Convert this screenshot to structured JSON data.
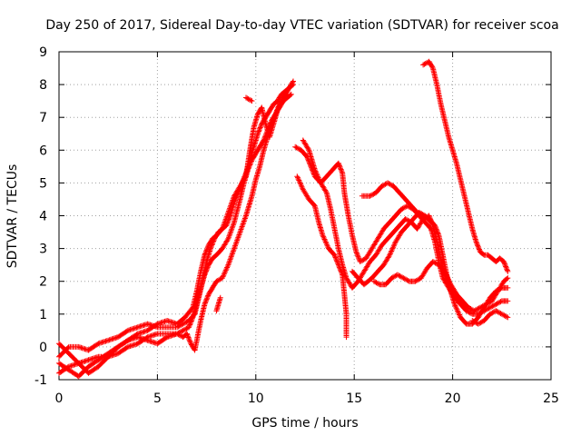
{
  "chart_data": {
    "type": "scatter",
    "title": "Day 250 of 2017, Sidereal Day-to-day VTEC variation (SDTVAR) for receiver scoa",
    "xlabel": "GPS time / hours",
    "ylabel": "SDTVAR / TECUs",
    "xlim": [
      0,
      25
    ],
    "ylim": [
      -1,
      9
    ],
    "xticks": [
      "0",
      "5",
      "10",
      "15",
      "20",
      "25"
    ],
    "yticks": [
      "-1",
      "0",
      "1",
      "2",
      "3",
      "4",
      "5",
      "6",
      "7",
      "8",
      "9"
    ],
    "grid": true,
    "marker": "plus",
    "point_color": "#ff0000",
    "segments": [
      [
        [
          0.0,
          -0.3
        ],
        [
          0.5,
          0.0
        ],
        [
          1.0,
          0.0
        ],
        [
          1.5,
          -0.1
        ],
        [
          2.0,
          0.1
        ],
        [
          2.5,
          0.2
        ],
        [
          3.0,
          0.3
        ],
        [
          3.5,
          0.5
        ],
        [
          4.0,
          0.6
        ],
        [
          4.5,
          0.7
        ],
        [
          5.0,
          0.6
        ],
        [
          5.5,
          0.6
        ],
        [
          6.0,
          0.6
        ],
        [
          6.3,
          0.7
        ],
        [
          6.6,
          0.8
        ],
        [
          6.9,
          1.0
        ],
        [
          7.1,
          1.5
        ],
        [
          7.3,
          2.0
        ],
        [
          7.5,
          2.6
        ],
        [
          7.7,
          3.0
        ],
        [
          7.9,
          3.3
        ],
        [
          8.1,
          3.5
        ],
        [
          8.3,
          3.6
        ],
        [
          8.5,
          3.7
        ],
        [
          8.7,
          4.0
        ],
        [
          8.9,
          4.4
        ],
        [
          9.1,
          4.7
        ],
        [
          9.3,
          5.0
        ],
        [
          9.5,
          5.3
        ],
        [
          9.7,
          5.7
        ],
        [
          9.9,
          6.1
        ],
        [
          10.1,
          6.5
        ],
        [
          10.3,
          6.8
        ],
        [
          10.5,
          7.0
        ],
        [
          10.7,
          7.2
        ],
        [
          10.9,
          7.4
        ],
        [
          11.1,
          7.5
        ],
        [
          11.3,
          7.7
        ],
        [
          11.5,
          7.8
        ],
        [
          11.7,
          7.9
        ],
        [
          11.9,
          8.1
        ]
      ],
      [
        [
          0.0,
          -0.8
        ],
        [
          0.5,
          -0.6
        ],
        [
          1.0,
          -0.5
        ],
        [
          1.5,
          -0.4
        ],
        [
          2.0,
          -0.3
        ],
        [
          2.5,
          -0.3
        ],
        [
          3.0,
          -0.2
        ],
        [
          3.5,
          0.0
        ],
        [
          4.0,
          0.1
        ],
        [
          4.5,
          0.3
        ],
        [
          5.0,
          0.4
        ],
        [
          5.5,
          0.4
        ],
        [
          6.0,
          0.4
        ],
        [
          6.3,
          0.5
        ],
        [
          6.6,
          0.6
        ],
        [
          6.8,
          0.9
        ],
        [
          7.0,
          1.3
        ],
        [
          7.2,
          1.8
        ],
        [
          7.4,
          2.2
        ],
        [
          7.6,
          2.5
        ],
        [
          7.8,
          2.7
        ],
        [
          8.0,
          2.8
        ],
        [
          8.3,
          3.0
        ],
        [
          8.6,
          3.3
        ],
        [
          8.9,
          3.8
        ],
        [
          9.2,
          4.5
        ],
        [
          9.4,
          5.0
        ],
        [
          9.6,
          5.4
        ],
        [
          9.8,
          5.7
        ],
        [
          10.0,
          5.9
        ],
        [
          10.2,
          6.1
        ],
        [
          10.4,
          6.3
        ],
        [
          10.6,
          6.6
        ],
        [
          10.8,
          6.9
        ],
        [
          11.0,
          7.1
        ],
        [
          11.2,
          7.3
        ],
        [
          11.4,
          7.5
        ],
        [
          11.6,
          7.6
        ],
        [
          11.8,
          7.7
        ]
      ],
      [
        [
          0.0,
          0.1
        ],
        [
          0.5,
          -0.2
        ],
        [
          1.0,
          -0.5
        ],
        [
          1.5,
          -0.8
        ],
        [
          2.0,
          -0.6
        ],
        [
          2.5,
          -0.3
        ],
        [
          3.0,
          0.0
        ],
        [
          3.5,
          0.2
        ],
        [
          4.0,
          0.3
        ],
        [
          4.5,
          0.2
        ],
        [
          5.0,
          0.1
        ],
        [
          5.5,
          0.3
        ],
        [
          6.0,
          0.4
        ],
        [
          6.3,
          0.3
        ],
        [
          6.5,
          0.4
        ],
        [
          6.7,
          0.1
        ],
        [
          6.9,
          -0.1
        ],
        [
          7.0,
          0.2
        ],
        [
          7.2,
          0.8
        ],
        [
          7.4,
          1.3
        ],
        [
          7.6,
          1.6
        ],
        [
          7.8,
          1.8
        ],
        [
          8.0,
          2.0
        ],
        [
          8.3,
          2.1
        ],
        [
          8.6,
          2.5
        ],
        [
          8.9,
          3.0
        ],
        [
          9.2,
          3.5
        ],
        [
          9.5,
          4.0
        ],
        [
          9.8,
          4.6
        ],
        [
          10.0,
          5.1
        ],
        [
          10.2,
          5.5
        ],
        [
          10.4,
          6.0
        ],
        [
          10.6,
          6.4
        ],
        [
          10.8,
          6.8
        ],
        [
          11.0,
          7.1
        ],
        [
          11.2,
          7.4
        ],
        [
          11.4,
          7.6
        ],
        [
          11.6,
          7.7
        ]
      ],
      [
        [
          0.0,
          -0.5
        ],
        [
          0.5,
          -0.7
        ],
        [
          1.0,
          -0.9
        ],
        [
          1.5,
          -0.6
        ],
        [
          2.0,
          -0.4
        ],
        [
          2.5,
          -0.2
        ],
        [
          3.0,
          0.0
        ],
        [
          3.5,
          0.2
        ],
        [
          4.0,
          0.4
        ],
        [
          4.5,
          0.5
        ],
        [
          5.0,
          0.7
        ],
        [
          5.5,
          0.8
        ],
        [
          6.0,
          0.7
        ],
        [
          6.4,
          0.9
        ],
        [
          6.8,
          1.2
        ],
        [
          7.0,
          1.7
        ],
        [
          7.2,
          2.3
        ],
        [
          7.4,
          2.8
        ],
        [
          7.6,
          3.1
        ],
        [
          7.8,
          3.3
        ],
        [
          8.0,
          3.4
        ],
        [
          8.3,
          3.6
        ],
        [
          8.6,
          4.1
        ],
        [
          8.9,
          4.6
        ],
        [
          9.2,
          4.9
        ],
        [
          9.5,
          5.2
        ],
        [
          9.7,
          6.0
        ],
        [
          9.9,
          6.7
        ],
        [
          10.1,
          7.1
        ],
        [
          10.3,
          7.3
        ],
        [
          10.5,
          6.8
        ],
        [
          10.7,
          6.4
        ],
        [
          10.9,
          6.8
        ],
        [
          11.1,
          7.2
        ],
        [
          11.3,
          7.5
        ],
        [
          11.5,
          7.7
        ],
        [
          11.7,
          7.9
        ],
        [
          11.9,
          8.0
        ]
      ],
      [
        [
          8.0,
          1.1
        ],
        [
          8.1,
          1.3
        ],
        [
          8.2,
          1.5
        ]
      ],
      [
        [
          9.5,
          7.6
        ],
        [
          9.8,
          7.5
        ]
      ],
      [
        [
          12.0,
          6.1
        ],
        [
          12.3,
          6.0
        ],
        [
          12.6,
          5.8
        ],
        [
          12.8,
          5.5
        ],
        [
          13.0,
          5.2
        ],
        [
          13.3,
          5.0
        ],
        [
          13.6,
          5.2
        ],
        [
          13.9,
          5.4
        ],
        [
          14.2,
          5.6
        ],
        [
          14.4,
          5.3
        ],
        [
          14.5,
          4.7
        ],
        [
          14.7,
          4.0
        ],
        [
          14.9,
          3.4
        ],
        [
          15.1,
          2.9
        ],
        [
          15.3,
          2.6
        ],
        [
          15.6,
          2.7
        ],
        [
          15.9,
          3.0
        ],
        [
          16.2,
          3.3
        ],
        [
          16.5,
          3.6
        ],
        [
          16.8,
          3.8
        ],
        [
          17.1,
          4.0
        ],
        [
          17.4,
          4.2
        ],
        [
          17.7,
          4.3
        ],
        [
          18.0,
          4.2
        ],
        [
          18.3,
          4.0
        ],
        [
          18.6,
          3.8
        ],
        [
          18.9,
          3.6
        ],
        [
          19.1,
          3.2
        ],
        [
          19.3,
          2.6
        ],
        [
          19.5,
          2.1
        ],
        [
          19.8,
          1.8
        ],
        [
          20.1,
          1.5
        ],
        [
          20.4,
          1.3
        ],
        [
          20.7,
          1.1
        ],
        [
          21.0,
          1.0
        ],
        [
          21.3,
          1.0
        ],
        [
          21.6,
          1.1
        ],
        [
          21.9,
          1.2
        ],
        [
          22.2,
          1.3
        ],
        [
          22.5,
          1.4
        ],
        [
          22.8,
          1.4
        ]
      ],
      [
        [
          12.4,
          6.3
        ],
        [
          12.7,
          6.0
        ],
        [
          13.0,
          5.4
        ],
        [
          13.3,
          5.0
        ],
        [
          13.6,
          4.7
        ],
        [
          13.8,
          4.2
        ],
        [
          14.0,
          3.6
        ],
        [
          14.2,
          3.0
        ],
        [
          14.4,
          2.5
        ],
        [
          14.6,
          2.1
        ],
        [
          14.9,
          1.8
        ],
        [
          15.2,
          2.0
        ],
        [
          15.5,
          2.3
        ],
        [
          15.8,
          2.6
        ],
        [
          16.1,
          2.8
        ],
        [
          16.4,
          3.1
        ],
        [
          16.7,
          3.3
        ],
        [
          17.0,
          3.5
        ],
        [
          17.3,
          3.7
        ],
        [
          17.6,
          3.9
        ],
        [
          17.9,
          3.8
        ],
        [
          18.2,
          3.6
        ],
        [
          18.5,
          3.9
        ],
        [
          18.8,
          4.0
        ],
        [
          19.0,
          3.7
        ],
        [
          19.2,
          3.2
        ],
        [
          19.4,
          2.6
        ],
        [
          19.6,
          2.2
        ],
        [
          19.9,
          1.9
        ],
        [
          20.2,
          1.6
        ],
        [
          20.5,
          1.4
        ],
        [
          20.8,
          1.2
        ],
        [
          21.1,
          1.1
        ],
        [
          21.4,
          1.2
        ],
        [
          21.7,
          1.3
        ],
        [
          22.0,
          1.4
        ],
        [
          22.3,
          1.7
        ],
        [
          22.6,
          2.0
        ],
        [
          22.8,
          2.1
        ]
      ],
      [
        [
          12.1,
          5.2
        ],
        [
          12.4,
          4.8
        ],
        [
          12.7,
          4.5
        ],
        [
          13.0,
          4.3
        ],
        [
          13.2,
          3.8
        ],
        [
          13.4,
          3.4
        ],
        [
          13.7,
          3.0
        ],
        [
          14.0,
          2.8
        ],
        [
          14.2,
          2.5
        ],
        [
          14.4,
          2.2
        ],
        [
          14.5,
          1.6
        ],
        [
          14.6,
          1.0
        ],
        [
          14.6,
          0.3
        ]
      ],
      [
        [
          15.4,
          4.6
        ],
        [
          15.8,
          4.6
        ],
        [
          16.1,
          4.7
        ],
        [
          16.4,
          4.9
        ],
        [
          16.7,
          5.0
        ],
        [
          17.0,
          4.9
        ],
        [
          17.3,
          4.7
        ],
        [
          17.6,
          4.5
        ],
        [
          17.9,
          4.3
        ],
        [
          18.2,
          4.1
        ],
        [
          18.5,
          4.0
        ],
        [
          18.8,
          3.9
        ],
        [
          19.1,
          3.7
        ],
        [
          19.3,
          3.4
        ],
        [
          19.5,
          2.8
        ],
        [
          19.7,
          2.2
        ],
        [
          19.9,
          1.7
        ],
        [
          20.1,
          1.3
        ],
        [
          20.4,
          0.9
        ],
        [
          20.7,
          0.7
        ],
        [
          21.0,
          0.7
        ],
        [
          21.3,
          0.9
        ],
        [
          21.6,
          1.2
        ],
        [
          21.9,
          1.5
        ],
        [
          22.2,
          1.7
        ],
        [
          22.5,
          1.8
        ],
        [
          22.8,
          1.8
        ]
      ],
      [
        [
          14.9,
          2.3
        ],
        [
          15.2,
          2.1
        ],
        [
          15.5,
          1.9
        ],
        [
          15.9,
          2.1
        ],
        [
          16.2,
          2.3
        ],
        [
          16.5,
          2.5
        ],
        [
          16.8,
          2.8
        ],
        [
          17.1,
          3.2
        ],
        [
          17.4,
          3.5
        ],
        [
          17.7,
          3.7
        ],
        [
          18.0,
          3.9
        ],
        [
          18.3,
          4.1
        ],
        [
          18.6,
          4.0
        ],
        [
          18.9,
          3.8
        ]
      ],
      [
        [
          16.0,
          2.0
        ],
        [
          16.3,
          1.9
        ],
        [
          16.6,
          1.9
        ],
        [
          16.9,
          2.1
        ],
        [
          17.2,
          2.2
        ],
        [
          17.5,
          2.1
        ],
        [
          17.8,
          2.0
        ],
        [
          18.1,
          2.0
        ],
        [
          18.4,
          2.1
        ],
        [
          18.7,
          2.4
        ],
        [
          19.0,
          2.6
        ],
        [
          19.3,
          2.5
        ],
        [
          19.6,
          2.3
        ],
        [
          19.9,
          1.9
        ],
        [
          20.2,
          1.6
        ],
        [
          20.5,
          1.3
        ]
      ],
      [
        [
          18.5,
          8.6
        ],
        [
          18.8,
          8.7
        ],
        [
          19.0,
          8.5
        ],
        [
          19.2,
          8.0
        ],
        [
          19.4,
          7.4
        ],
        [
          19.6,
          6.9
        ],
        [
          19.8,
          6.4
        ],
        [
          20.0,
          6.0
        ],
        [
          20.2,
          5.6
        ],
        [
          20.4,
          5.1
        ],
        [
          20.6,
          4.6
        ],
        [
          20.8,
          4.1
        ],
        [
          21.0,
          3.6
        ],
        [
          21.2,
          3.2
        ],
        [
          21.4,
          2.9
        ],
        [
          21.6,
          2.8
        ],
        [
          21.8,
          2.8
        ],
        [
          22.0,
          2.7
        ],
        [
          22.2,
          2.6
        ],
        [
          22.4,
          2.7
        ],
        [
          22.6,
          2.6
        ],
        [
          22.8,
          2.3
        ]
      ],
      [
        [
          21.0,
          0.8
        ],
        [
          21.3,
          0.7
        ],
        [
          21.6,
          0.8
        ],
        [
          21.9,
          1.0
        ],
        [
          22.2,
          1.1
        ],
        [
          22.5,
          1.0
        ],
        [
          22.8,
          0.9
        ]
      ]
    ]
  }
}
